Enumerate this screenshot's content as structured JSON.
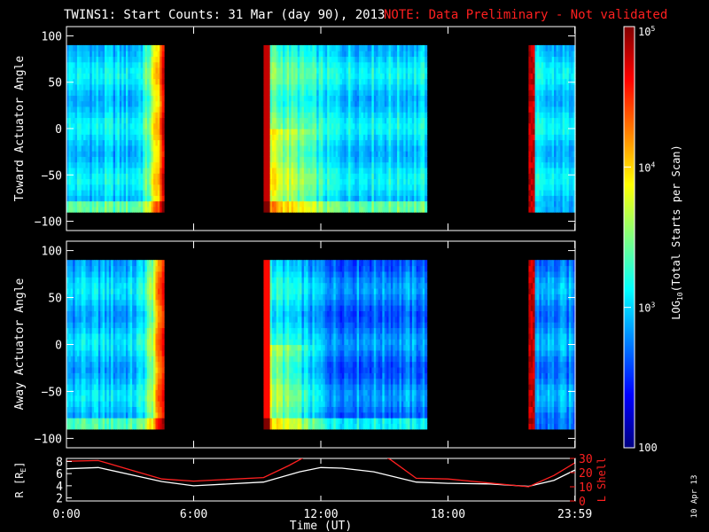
{
  "header": {
    "title": "TWINS1: Start Counts: 31 Mar (day  90), 2013",
    "note": "NOTE: Data Preliminary - Not validated"
  },
  "date_stamp": "10 Apr 13",
  "colors": {
    "note": "#ff2020",
    "r_line": "#ffffff",
    "l_line": "#ff2020"
  },
  "chart_data": [
    {
      "type": "heatmap",
      "ylabel": "Toward Actuator Angle",
      "ylim": [
        -110,
        110
      ],
      "yticks": [
        -100,
        -50,
        0,
        50,
        100
      ],
      "ytick_labels": [
        "−100",
        "−50",
        "0",
        "50",
        "100"
      ],
      "angle_range": [
        -90,
        90
      ],
      "segments": [
        {
          "start_h": 0.0,
          "end_h": 4.6,
          "base_log": 3.0,
          "rise_log": 1.8,
          "rise_start_h": 3.0
        },
        {
          "start_h": 9.3,
          "end_h": 17.0,
          "base_log": 3.05,
          "early_log": 3.9,
          "decay_to_h": 12.5
        },
        {
          "start_h": 21.8,
          "end_h": 24.0,
          "base_log": 3.0,
          "edge_log": 4.8
        }
      ]
    },
    {
      "type": "heatmap",
      "ylabel": "Away Actuator Angle",
      "ylim": [
        -110,
        110
      ],
      "yticks": [
        -100,
        -50,
        0,
        50,
        100
      ],
      "ytick_labels": [
        "−100",
        "−50",
        "0",
        "50",
        "100"
      ],
      "angle_range": [
        -90,
        90
      ],
      "segments": [
        {
          "start_h": 0.0,
          "end_h": 4.6,
          "base_log": 2.95,
          "rise_log": 1.9,
          "rise_start_h": 3.0
        },
        {
          "start_h": 9.3,
          "end_h": 17.0,
          "base_log": 2.75,
          "early_log": 3.7,
          "decay_to_h": 12.5
        },
        {
          "start_h": 21.8,
          "end_h": 24.0,
          "base_log": 2.8,
          "edge_log": 4.8
        }
      ]
    },
    {
      "type": "line",
      "ylabel": "R [R",
      "ylabel_sub": "E",
      "ylabel_tail": "]",
      "ylabel_right": "L Shell",
      "ylim": [
        1.5,
        8.5
      ],
      "yticks": [
        2,
        4,
        6,
        8
      ],
      "ylim_right": [
        0,
        30
      ],
      "yticks_right": [
        0,
        10,
        20,
        30
      ],
      "xlabel": "Time (UT)",
      "xlim": [
        0,
        24
      ],
      "xticks": [
        0,
        6,
        12,
        18,
        23.983
      ],
      "xtick_labels": [
        "0:00",
        "6:00",
        "12:00",
        "18:00",
        "23:59"
      ],
      "series": [
        {
          "axis": "left",
          "x": [
            0.0,
            1.5,
            4.5,
            6.0,
            9.3,
            11.0,
            12.0,
            13.0,
            14.5,
            16.5,
            18.0,
            20.0,
            21.8,
            23.0,
            24.0
          ],
          "values": [
            6.8,
            7.0,
            4.7,
            4.0,
            4.6,
            6.3,
            7.0,
            6.9,
            6.3,
            4.6,
            4.4,
            4.3,
            3.9,
            4.9,
            6.6
          ]
        },
        {
          "axis": "right",
          "x": [
            0.0,
            1.5,
            4.5,
            6.0,
            9.3,
            10.5,
            11.3,
            15.0,
            15.3,
            16.5,
            18.0,
            21.8,
            23.0,
            24.0
          ],
          "values": [
            28.0,
            28.5,
            15.5,
            14.0,
            16.5,
            25.0,
            31.5,
            31.5,
            29.0,
            16.0,
            15.5,
            10.0,
            18.0,
            27.0
          ]
        }
      ]
    }
  ],
  "colorbar": {
    "label": "LOG",
    "label_sub": "10",
    "label_tail": "(Total Starts per Scan)",
    "range_log": [
      2,
      5
    ],
    "ticks": [
      {
        "log": 5,
        "base": "10",
        "exp": "5"
      },
      {
        "log": 4,
        "base": "10",
        "exp": "4"
      },
      {
        "log": 3,
        "base": "10",
        "exp": "3"
      },
      {
        "log": 2,
        "base": "100",
        "exp": ""
      }
    ]
  }
}
